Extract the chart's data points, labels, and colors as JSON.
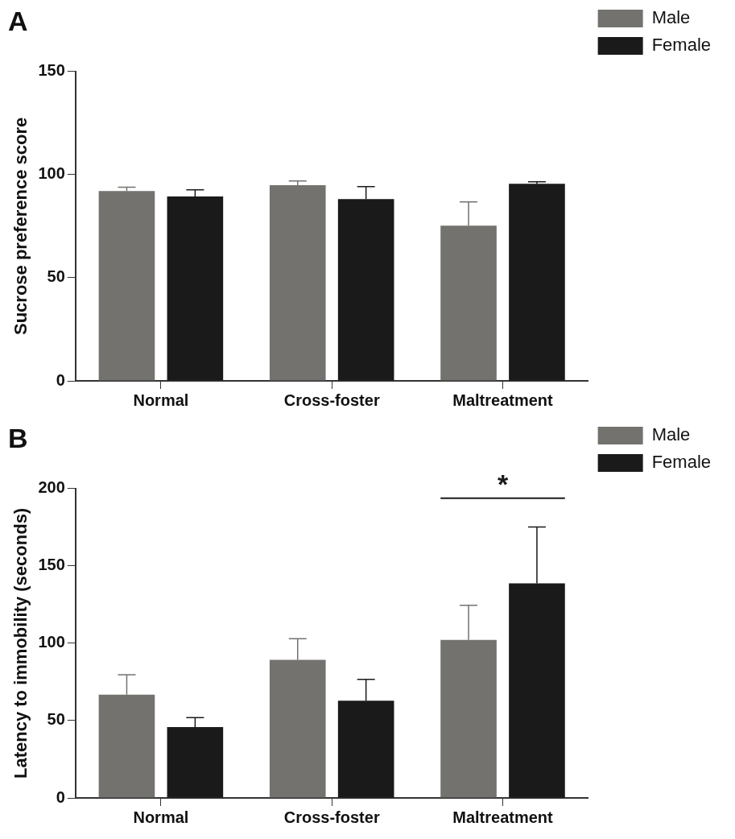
{
  "chart_data": [
    {
      "type": "bar",
      "title": "A",
      "ylabel": "Sucrose preference score",
      "categories": [
        "Normal",
        "Cross-foster",
        "Maltreatment"
      ],
      "series": [
        {
          "name": "Male",
          "color": "#73726e",
          "values": [
            92.0,
            94.9,
            75.3
          ],
          "errors": [
            [
              92.0,
              93.9
            ],
            [
              94.9,
              96.9
            ],
            [
              75.3,
              86.8
            ]
          ]
        },
        {
          "name": "Female",
          "color": "#1a1a1a",
          "values": [
            89.4,
            88.1,
            95.6
          ],
          "errors": [
            [
              89.4,
              92.6
            ],
            [
              88.1,
              94.2
            ],
            [
              95.6,
              96.5
            ]
          ]
        }
      ],
      "ylim": [
        0,
        150
      ],
      "yticks": [
        0,
        50,
        100,
        150
      ],
      "grid": false,
      "legend": "right"
    },
    {
      "type": "bar",
      "title": "B",
      "ylabel": "Latency to immobility (seconds)",
      "categories": [
        "Normal",
        "Cross-foster",
        "Maltreatment"
      ],
      "series": [
        {
          "name": "Male",
          "color": "#73726e",
          "values": [
            66.8,
            89.3,
            102.1
          ],
          "errors": [
            [
              66.8,
              79.6
            ],
            [
              89.3,
              103
            ],
            [
              102.1,
              124.6
            ]
          ]
        },
        {
          "name": "Female",
          "color": "#1a1a1a",
          "values": [
            45.8,
            62.8,
            138.7
          ],
          "errors": [
            [
              45.8,
              51.9
            ],
            [
              62.8,
              76.7
            ],
            [
              138.7,
              175.2
            ]
          ]
        }
      ],
      "ylim": [
        0,
        200
      ],
      "yticks": [
        0,
        50,
        100,
        150,
        200
      ],
      "grid": false,
      "legend": "right",
      "annotations": [
        "*"
      ]
    }
  ]
}
